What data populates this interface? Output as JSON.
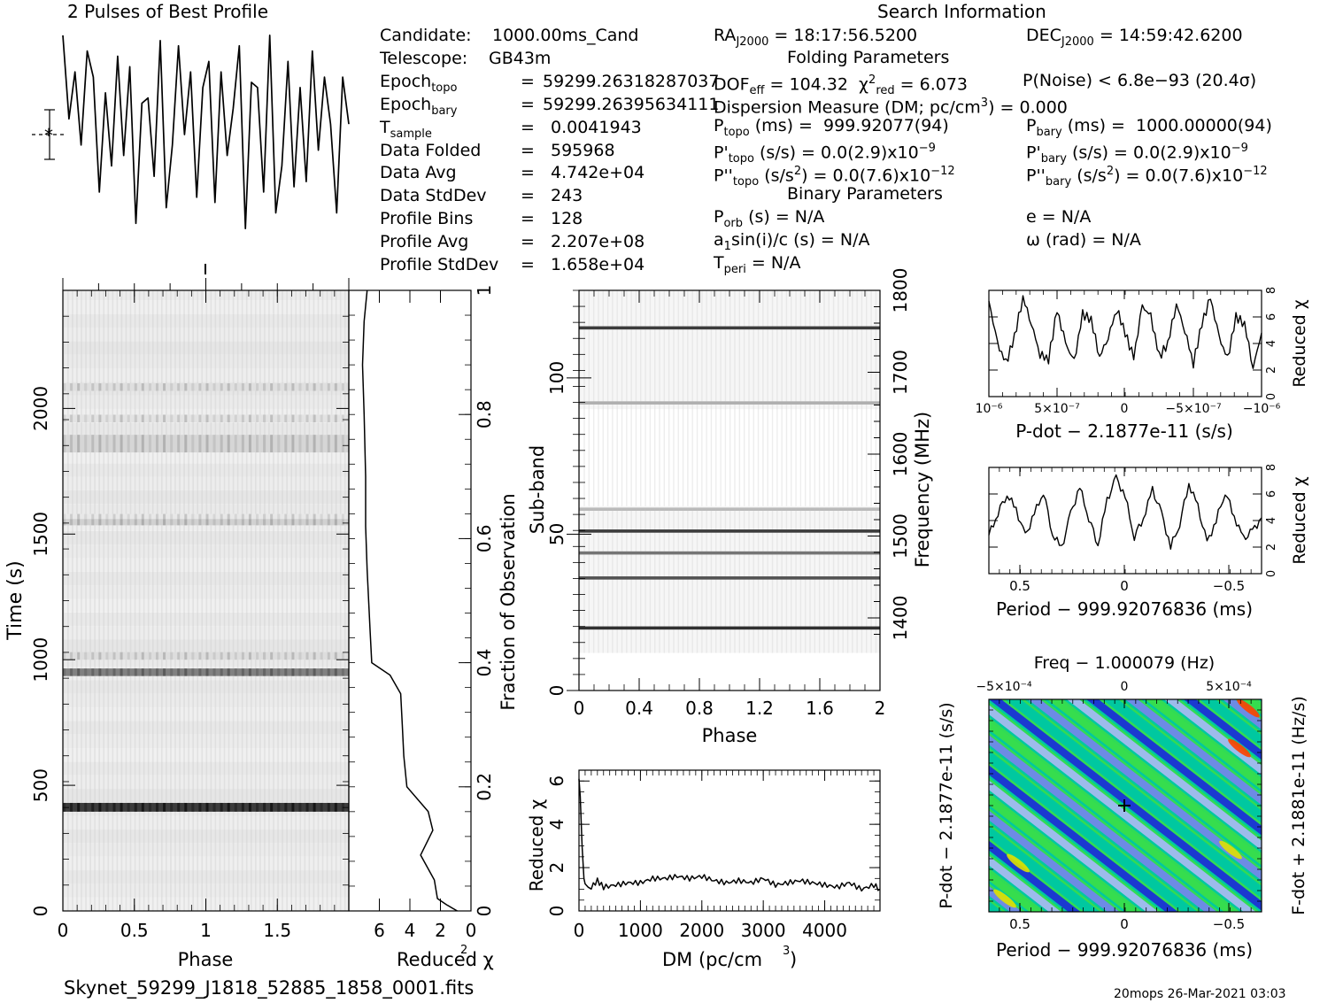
{
  "header": {
    "profile_title": "2 Pulses of Best Profile",
    "search_title": "Search Information",
    "folding_title": "Folding Parameters",
    "binary_title": "Binary Parameters",
    "filename": "Skynet_59299_J1818_52885_1858_0001.fits",
    "footer": "20mops  26-Mar-2021 03:03"
  },
  "info_left": [
    {
      "label": "Candidate:",
      "sub": "",
      "eq": "",
      "value": "1000.00ms_Cand"
    },
    {
      "label": "Telescope:",
      "sub": "",
      "eq": "",
      "value": "GB43m"
    },
    {
      "label": "Epoch",
      "sub": "topo",
      "eq": "=",
      "value": "59299.26318287037"
    },
    {
      "label": "Epoch",
      "sub": "bary",
      "eq": "=",
      "value": "59299.26395634111"
    },
    {
      "label": "T",
      "sub": "sample",
      "eq": "=",
      "value": "0.0041943"
    },
    {
      "label": "Data Folded",
      "sub": "",
      "eq": "=",
      "value": "595968"
    },
    {
      "label": "Data Avg",
      "sub": "",
      "eq": "=",
      "value": "4.742e+04"
    },
    {
      "label": "Data StdDev",
      "sub": "",
      "eq": "=",
      "value": "243"
    },
    {
      "label": "Profile Bins",
      "sub": "",
      "eq": "=",
      "value": "128"
    },
    {
      "label": "Profile Avg",
      "sub": "",
      "eq": "=",
      "value": "2.207e+08"
    },
    {
      "label": "Profile StdDev",
      "sub": "",
      "eq": "=",
      "value": "1.658e+04"
    }
  ],
  "search": {
    "ra": "18:17:56.5200",
    "dec": "14:59:42.6200",
    "dof_eff": "104.32",
    "chi2_red": "6.073",
    "p_noise": "P(Noise) < 6.8e−93  (20.4σ)",
    "dm": "0.000",
    "p_topo": "999.92077(94)",
    "p_bary": "1000.00000(94)",
    "pd_topo": "0.0(2.9)x10",
    "pd_topo_exp": "−9",
    "pd_bary": "0.0(2.9)x10",
    "pd_bary_exp": "−9",
    "pdd_topo": "0.0(7.6)x10",
    "pdd_topo_exp": "−12",
    "pdd_bary": "0.0(7.6)x10",
    "pdd_bary_exp": "−12",
    "p_orb": "N/A",
    "a1sini": "N/A",
    "t_peri": "N/A",
    "e": "N/A",
    "omega": "N/A"
  },
  "axes": {
    "phase": "Phase",
    "time": "Time (s)",
    "reduced_chi2": "Reduced χ",
    "fraction_obs": "Fraction of Observation",
    "subband": "Sub-band",
    "frequency": "Frequency (MHz)",
    "dm": "DM (pc/cm",
    "pdot_axis": "P-dot − 2.1877e-11 (s/s)",
    "period_axis": "Period − 999.92076836 (ms)",
    "freq_axis": "Freq − 1.000079 (Hz)",
    "pdot_vert": "P-dot − 2.1877e-11 (s/s)",
    "fdot_vert": "F-dot + 2.1881e-11 (Hz/s)"
  },
  "chart_data": [
    {
      "type": "line",
      "id": "best_profile",
      "title": "2 Pulses of Best Profile",
      "x_range": [
        0,
        2
      ],
      "series": [
        {
          "values": [
            0.95,
            0.15,
            0.6,
            -0.1,
            0.8,
            0.55,
            -0.55,
            0.4,
            -0.3,
            0.75,
            -0.2,
            0.65,
            -0.85,
            0.3,
            0.35,
            -0.4,
            0.9,
            -0.7,
            -0.1,
            0.85,
            0.0,
            0.6,
            -0.6,
            0.45,
            0.7,
            -0.65,
            0.6,
            -0.2,
            0.25,
            0.85,
            -0.9,
            0.5,
            0.45,
            -0.55,
            0.95,
            -0.75,
            -0.3,
            0.7,
            -0.5,
            0.45,
            -0.45,
            0.8,
            -0.15,
            0.55,
            0.1,
            -0.75,
            0.55,
            0.1
          ]
        }
      ]
    },
    {
      "type": "heatmap",
      "id": "time_phase",
      "xlabel": "Phase",
      "ylabel": "Time (s)",
      "xlim": [
        0,
        2
      ],
      "ylim": [
        0,
        2470
      ],
      "x_ticks": [
        0,
        0.5,
        1,
        1.5
      ],
      "y_ticks": [
        0,
        500,
        1000,
        1500,
        2000
      ],
      "bands": [
        {
          "t0": 395,
          "t1": 430,
          "intensity": 0.85
        },
        {
          "t0": 935,
          "t1": 965,
          "intensity": 0.55
        },
        {
          "t0": 1000,
          "t1": 1030,
          "intensity": 0.15
        },
        {
          "t0": 1535,
          "t1": 1565,
          "intensity": 0.2
        },
        {
          "t0": 1560,
          "t1": 1580,
          "intensity": 0.1
        },
        {
          "t0": 1825,
          "t1": 1895,
          "intensity": 0.18
        },
        {
          "t0": 1945,
          "t1": 1975,
          "intensity": 0.12
        },
        {
          "t0": 2070,
          "t1": 2100,
          "intensity": 0.14
        }
      ]
    },
    {
      "type": "line",
      "id": "reduced_chi2_vs_time",
      "xlabel": "Reduced χ²",
      "xlim": [
        8,
        0
      ],
      "x_ticks": [
        6,
        4,
        2,
        0
      ],
      "y2label": "Fraction of Observation",
      "y2_ticks": [
        0,
        0.2,
        0.4,
        0.6,
        0.8,
        1
      ],
      "x": [
        0.9,
        1.6,
        2.2,
        2.4,
        3.3,
        2.5,
        2.8,
        4.2,
        4.4,
        4.5,
        4.6,
        5.3,
        6.5,
        6.6,
        6.8,
        6.9,
        6.9,
        7.0,
        7.1,
        7.0,
        6.8
      ],
      "y": [
        0,
        0.01,
        0.02,
        0.05,
        0.09,
        0.13,
        0.16,
        0.2,
        0.25,
        0.3,
        0.35,
        0.38,
        0.4,
        0.45,
        0.55,
        0.62,
        0.7,
        0.8,
        0.88,
        0.95,
        1.0
      ]
    },
    {
      "type": "heatmap",
      "id": "subband_phase",
      "xlabel": "Phase",
      "ylabel": "Sub-band",
      "y2label": "Frequency (MHz)",
      "xlim": [
        0,
        2
      ],
      "ylim": [
        0,
        128
      ],
      "x_ticks": [
        0,
        0.4,
        0.8,
        1.2,
        1.6,
        2
      ],
      "y_ticks": [
        0,
        50,
        100
      ],
      "y2_ticks": [
        1400,
        1500,
        1600,
        1700,
        1800
      ],
      "lines": [
        {
          "subband": 20,
          "intensity": 0.9
        },
        {
          "subband": 36,
          "intensity": 0.75
        },
        {
          "subband": 44,
          "intensity": 0.6
        },
        {
          "subband": 51,
          "intensity": 0.85
        },
        {
          "subband": 58,
          "intensity": 0.3
        },
        {
          "subband": 92,
          "intensity": 0.35
        },
        {
          "subband": 116,
          "intensity": 0.85
        }
      ]
    },
    {
      "type": "line",
      "id": "dm_curve",
      "xlabel": "DM (pc/cm³)",
      "ylabel": "Reduced χ²",
      "xlim": [
        0,
        4900
      ],
      "ylim": [
        0,
        6.5
      ],
      "x_ticks": [
        0,
        1000,
        2000,
        3000,
        4000
      ],
      "y_ticks": [
        0,
        2,
        4,
        6
      ],
      "x": [
        0,
        20,
        50,
        80,
        100,
        150,
        200,
        300,
        400,
        600,
        800,
        1000,
        1200,
        1400,
        1600,
        1800,
        2000,
        2200,
        2400,
        2600,
        2800,
        3000,
        3200,
        3400,
        3600,
        3800,
        4000,
        4200,
        4400,
        4600,
        4800,
        4900
      ],
      "y": [
        6.1,
        5.3,
        3.0,
        1.5,
        1.2,
        1.0,
        1.1,
        1.4,
        1.1,
        1.2,
        1.3,
        1.3,
        1.5,
        1.5,
        1.6,
        1.5,
        1.6,
        1.4,
        1.3,
        1.4,
        1.3,
        1.5,
        1.2,
        1.3,
        1.4,
        1.3,
        1.2,
        1.1,
        1.3,
        1.0,
        1.2,
        1.0
      ]
    },
    {
      "type": "line",
      "id": "pdot_curve",
      "xlabel": "P-dot − 2.1877e-11 (s/s)",
      "ylabel": "Reduced χ²",
      "x_tick_labels": [
        "10⁻⁶",
        "5×10⁻⁷",
        "0",
        "−5×10⁻⁷",
        "−10⁻⁶"
      ],
      "ylim": [
        0,
        8
      ],
      "y_ticks": [
        0,
        2,
        4,
        6,
        8
      ],
      "values": [
        7.2,
        4.0,
        2.5,
        4.5,
        7.5,
        5.5,
        3.2,
        2.8,
        6.5,
        4.0,
        2.6,
        6.2,
        5.8,
        3.0,
        4.5,
        6.6,
        4.8,
        2.9,
        6.8,
        6.0,
        3.0,
        4.0,
        7.0,
        5.0,
        2.5,
        5.5,
        7.4,
        4.5,
        2.8,
        6.0,
        5.5,
        2.2,
        4.8
      ]
    },
    {
      "type": "line",
      "id": "period_curve",
      "xlabel": "Period − 999.92076836 (ms)",
      "ylabel": "Reduced χ²",
      "x_tick_labels": [
        "0.5",
        "0",
        "−0.5"
      ],
      "ylim": [
        0,
        8
      ],
      "y_ticks": [
        0,
        2,
        4,
        6,
        8
      ],
      "values": [
        2.9,
        4.6,
        6.0,
        4.8,
        2.8,
        4.5,
        6.2,
        3.0,
        1.9,
        4.5,
        6.5,
        4.2,
        2.2,
        5.5,
        7.2,
        5.8,
        2.8,
        4.2,
        6.3,
        4.5,
        2.0,
        3.8,
        6.8,
        5.0,
        2.3,
        4.0,
        6.2,
        4.3,
        2.6,
        3.2,
        4.2
      ]
    },
    {
      "type": "heatmap",
      "id": "period_pdot",
      "title": "Freq − 1.000079 (Hz)",
      "xlabel": "Period − 999.92076836 (ms)",
      "ylabel": "P-dot − 2.1877e-11 (s/s)",
      "y2label": "F-dot + 2.1881e-11 (Hz/s)",
      "x_tick_labels": [
        "0.5",
        "0",
        "−0.5"
      ],
      "top_tick_labels": [
        "−5×10⁻⁴",
        "0",
        "5×10⁻⁴"
      ],
      "colors": [
        "#2020d8",
        "#8080f0",
        "#b8b8f8",
        "#00c8a0",
        "#40e040",
        "#e0e000",
        "#ff4000"
      ]
    }
  ]
}
